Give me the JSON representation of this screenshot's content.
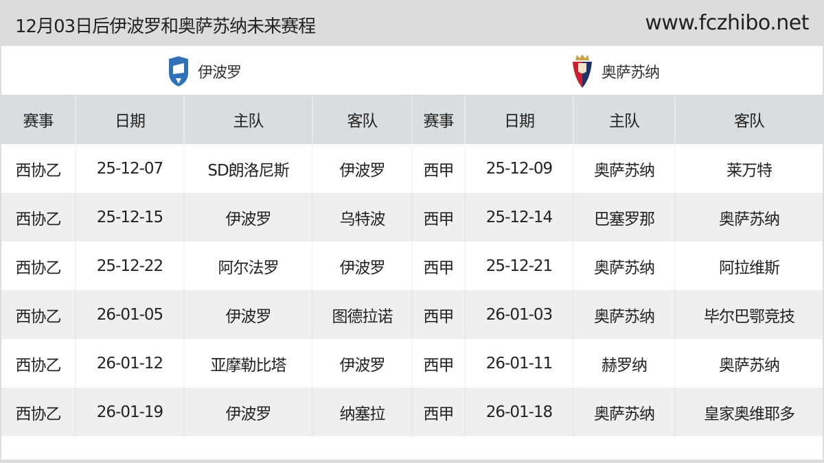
{
  "title": "12月03日后伊波罗和奥萨苏纳未来赛程",
  "site": "www.fczhibo.net",
  "teams": [
    {
      "name": "伊波罗",
      "icon": "ibiza-crest-icon",
      "color": "#2f72b8"
    },
    {
      "name": "奥萨苏纳",
      "icon": "osasuna-crest-icon",
      "color": "#c8202e"
    }
  ],
  "headers": [
    "赛事",
    "日期",
    "主队",
    "客队",
    "赛事",
    "日期",
    "主队",
    "客队"
  ],
  "rows": [
    [
      "西协乙",
      "25-12-07",
      "SD朗洛尼斯",
      "伊波罗",
      "西甲",
      "25-12-09",
      "奥萨苏纳",
      "莱万特"
    ],
    [
      "西协乙",
      "25-12-15",
      "伊波罗",
      "乌特波",
      "西甲",
      "25-12-14",
      "巴塞罗那",
      "奥萨苏纳"
    ],
    [
      "西协乙",
      "25-12-22",
      "阿尔法罗",
      "伊波罗",
      "西甲",
      "25-12-21",
      "奥萨苏纳",
      "阿拉维斯"
    ],
    [
      "西协乙",
      "26-01-05",
      "伊波罗",
      "图德拉诺",
      "西甲",
      "26-01-03",
      "奥萨苏纳",
      "毕尔巴鄂竞技"
    ],
    [
      "西协乙",
      "26-01-12",
      "亚摩勒比塔",
      "伊波罗",
      "西甲",
      "26-01-11",
      "赫罗纳",
      "奥萨苏纳"
    ],
    [
      "西协乙",
      "26-01-19",
      "伊波罗",
      "纳塞拉",
      "西甲",
      "26-01-18",
      "奥萨苏纳",
      "皇家奥维耶多"
    ]
  ]
}
